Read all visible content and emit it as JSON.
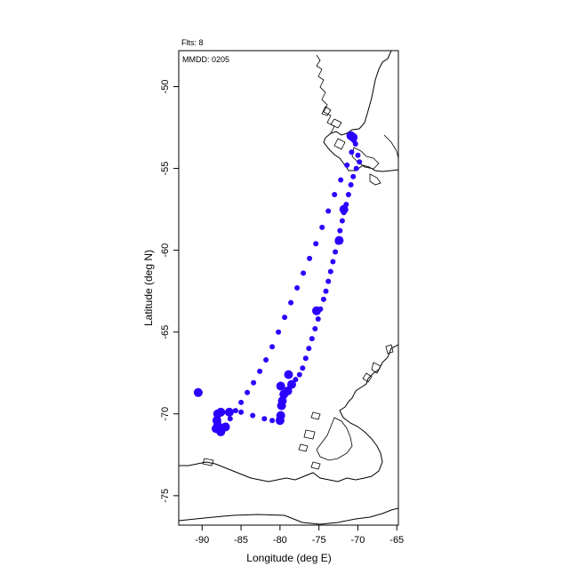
{
  "header": {
    "flights_label": "Flts: 8",
    "date_label": "MMDD: 0205"
  },
  "axes": {
    "xlabel": "Longitude (deg E)",
    "ylabel": "Latitude (deg N)",
    "xlim": [
      -93,
      -64.8
    ],
    "ylim": [
      -76.8,
      -47.8
    ],
    "xticks": [
      -90,
      -85,
      -80,
      -75,
      -70,
      -65
    ],
    "yticks": [
      -50,
      -55,
      -60,
      -65,
      -70,
      -75
    ]
  },
  "colors": {
    "track": "#2a00ff",
    "coast": "#000000"
  },
  "chart_data": {
    "type": "scatter",
    "xlabel": "Longitude (deg E)",
    "ylabel": "Latitude (deg N)",
    "xlim": [
      -93,
      -64.8
    ],
    "ylim": [
      -76.8,
      -47.8
    ],
    "grid": false,
    "series": [
      {
        "points": [
          [
            -70.6,
            -53.1
          ],
          [
            -70.3,
            -53.5
          ],
          [
            -70.0,
            -54.2
          ],
          [
            -69.8,
            -54.6
          ],
          [
            -70.2,
            -55.0
          ],
          [
            -70.6,
            -55.5
          ],
          [
            -70.9,
            -56.0
          ],
          [
            -71.2,
            -56.6
          ],
          [
            -71.5,
            -57.2
          ],
          [
            -71.8,
            -57.7
          ],
          [
            -72.0,
            -58.2
          ],
          [
            -72.3,
            -58.8
          ],
          [
            -72.6,
            -59.5
          ],
          [
            -72.9,
            -60.1
          ],
          [
            -73.2,
            -60.7
          ],
          [
            -73.5,
            -61.3
          ],
          [
            -73.8,
            -61.9
          ],
          [
            -74.1,
            -62.5
          ],
          [
            -74.4,
            -63.0
          ],
          [
            -74.8,
            -63.6
          ],
          [
            -75.1,
            -64.2
          ],
          [
            -75.5,
            -64.8
          ],
          [
            -75.9,
            -65.4
          ],
          [
            -76.3,
            -66.0
          ],
          [
            -76.7,
            -66.6
          ],
          [
            -77.1,
            -67.2
          ],
          [
            -77.5,
            -67.6
          ],
          [
            -78.0,
            -67.9
          ],
          [
            -78.5,
            -68.2
          ],
          [
            -79.0,
            -68.6
          ],
          [
            -79.5,
            -68.8
          ],
          [
            -79.8,
            -69.5
          ],
          [
            -79.9,
            -70.1
          ],
          [
            -80.0,
            -70.4
          ],
          [
            -81.0,
            -70.4
          ],
          [
            -82.0,
            -70.3
          ],
          [
            -83.5,
            -70.1
          ],
          [
            -85.0,
            -69.9
          ],
          [
            -86.5,
            -69.9
          ],
          [
            -87.6,
            -69.9
          ],
          [
            -88.1,
            -70.4
          ],
          [
            -88.2,
            -70.9
          ],
          [
            -87.6,
            -71.1
          ],
          [
            -87.0,
            -70.8
          ],
          [
            -86.4,
            -70.3
          ],
          [
            -85.7,
            -69.8
          ],
          [
            -85.0,
            -69.3
          ],
          [
            -84.2,
            -68.7
          ],
          [
            -83.4,
            -68.1
          ],
          [
            -82.6,
            -67.4
          ],
          [
            -81.8,
            -66.7
          ],
          [
            -81.0,
            -65.9
          ],
          [
            -80.2,
            -65.0
          ],
          [
            -79.4,
            -64.1
          ],
          [
            -78.6,
            -63.2
          ],
          [
            -77.8,
            -62.3
          ],
          [
            -77.0,
            -61.4
          ],
          [
            -76.2,
            -60.5
          ],
          [
            -75.4,
            -59.6
          ],
          [
            -74.6,
            -58.6
          ],
          [
            -73.8,
            -57.6
          ],
          [
            -73.0,
            -56.6
          ],
          [
            -72.2,
            -55.7
          ],
          [
            -71.4,
            -54.8
          ],
          [
            -70.8,
            -54.0
          ],
          [
            -70.5,
            -53.3
          ],
          [
            -70.9,
            -53.0
          ],
          [
            -88.0,
            -70.0
          ],
          [
            -88.0,
            -70.7
          ],
          [
            -79.9,
            -68.3
          ],
          [
            -79.7,
            -69.2
          ],
          [
            -72.4,
            -59.4
          ],
          [
            -71.8,
            -57.5
          ],
          [
            -75.3,
            -63.7
          ],
          [
            -78.9,
            -67.6
          ],
          [
            -90.5,
            -68.7
          ]
        ]
      }
    ]
  }
}
